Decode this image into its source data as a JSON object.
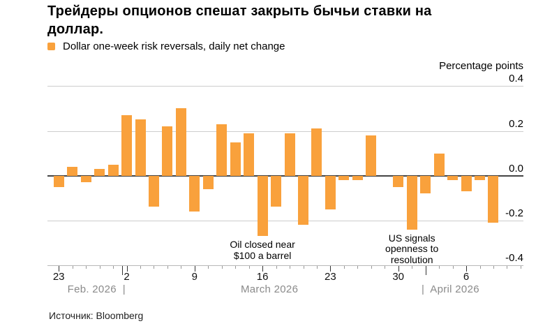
{
  "title": {
    "line1": "Трейдеры опционов спешат закрыть бычьи ставки на",
    "line2": "доллар."
  },
  "legend": {
    "label": "Dollar one-week risk reversals, daily net change"
  },
  "y_axis_unit": "Percentage points",
  "source": "Источник: Bloomberg",
  "colors": {
    "bar": "#F9A13C",
    "gridline": "#CDCDCD",
    "zero_line": "#444444",
    "axis_line": "#B8B8B8",
    "tick_minor": "#999999",
    "tick_major": "#333333",
    "tick_label": "#111111",
    "month_label": "#8A8A8A"
  },
  "chart_data": {
    "type": "bar",
    "title": "Трейдеры опционов спешат закрыть бычьи ставки на доллар.",
    "series_name": "Dollar one-week risk reversals, daily net change",
    "xlabel": "",
    "ylabel": "Percentage points",
    "ylim": [
      -0.4,
      0.4
    ],
    "grid": true,
    "legend_position": "top-left",
    "categories": [
      "Feb 23",
      "Feb 24",
      "Feb 25",
      "Feb 26",
      "Feb 27",
      "Mar 2",
      "Mar 3",
      "Mar 4",
      "Mar 5",
      "Mar 6",
      "Mar 9",
      "Mar 10",
      "Mar 11",
      "Mar 12",
      "Mar 13",
      "Mar 16",
      "Mar 17",
      "Mar 18",
      "Mar 19",
      "Mar 20",
      "Mar 23",
      "Mar 24",
      "Mar 25",
      "Mar 26",
      "Mar 27",
      "Mar 30",
      "Mar 31",
      "Apr 1",
      "Apr 2",
      "Apr 3",
      "Apr 6",
      "Apr 7",
      "Apr 8"
    ],
    "values": [
      -0.05,
      0.04,
      -0.03,
      0.03,
      0.05,
      0.27,
      0.25,
      -0.14,
      0.22,
      0.3,
      -0.16,
      -0.06,
      0.23,
      0.15,
      0.19,
      -0.27,
      -0.14,
      0.19,
      -0.22,
      0.21,
      -0.15,
      -0.02,
      -0.02,
      0.18,
      0.0,
      -0.05,
      -0.24,
      -0.08,
      0.1,
      -0.02,
      -0.07,
      -0.02,
      -0.21
    ],
    "yticks": [
      0.4,
      0.2,
      0.0,
      -0.2,
      -0.4
    ],
    "ytick_labels": [
      "0.4",
      "0.2",
      "0.0",
      "-0.2",
      "-0.4"
    ],
    "xticks": [
      {
        "slot": 0,
        "label": "23"
      },
      {
        "slot": 5,
        "label": "2"
      },
      {
        "slot": 10,
        "label": "9"
      },
      {
        "slot": 15,
        "label": "16"
      },
      {
        "slot": 20,
        "label": "23"
      },
      {
        "slot": 25,
        "label": "30"
      },
      {
        "slot": 30,
        "label": "6"
      }
    ],
    "month_dividers": [
      4.67,
      27
    ],
    "month_labels": [
      {
        "text": "Feb. 2026  |"
      },
      {
        "text": "March 2026"
      },
      {
        "text": "|  April 2026"
      }
    ],
    "annotations": [
      {
        "lines": [
          "Oil closed near",
          "$100 a barrel"
        ],
        "anchor_slot": 15
      },
      {
        "lines": [
          "US signals",
          "openness to",
          "resolution"
        ],
        "anchor_slot": 26
      }
    ],
    "n_slots": 35
  }
}
